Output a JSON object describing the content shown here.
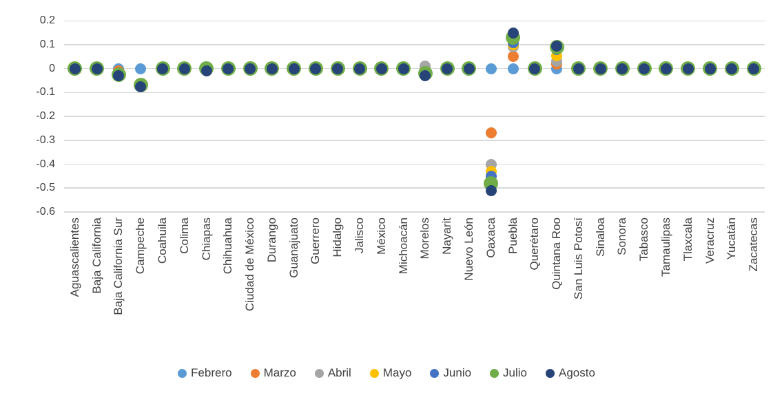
{
  "chart_data": {
    "type": "scatter",
    "title": "",
    "xlabel": "",
    "ylabel": "",
    "ylim": [
      -0.6,
      0.2
    ],
    "y_tick_labels": [
      "0.2",
      "0.1",
      "0",
      "-0.1",
      "-0.2",
      "-0.3",
      "-0.4",
      "-0.5",
      "-0.6"
    ],
    "grid": true,
    "legend_position": "bottom",
    "gridline_color": "#D9D9D9",
    "text_color": "#404040",
    "categories": [
      "Aguascalientes",
      "Baja California",
      "Baja California Sur",
      "Campeche",
      "Coahuila",
      "Colima",
      "Chiapas",
      "Chihuahua",
      "Ciudad de México",
      "Durango",
      "Guanajuato",
      "Guerrero",
      "Hidalgo",
      "Jalisco",
      "México",
      "Michoacán",
      "Morelos",
      "Nayarit",
      "Nuevo León",
      "Oaxaca",
      "Puebla",
      "Querétaro",
      "Quintana Roo",
      "San Luis Potosí",
      "Sinaloa",
      "Sonora",
      "Tabasco",
      "Tamaulipas",
      "Tlaxcala",
      "Veracruz",
      "Yucatán",
      "Zacatecas"
    ],
    "series": [
      {
        "name": "Febrero",
        "color": "#5B9BD5",
        "marker_size": 16,
        "values": [
          0,
          0,
          0,
          0,
          0,
          0,
          0,
          0,
          0,
          0,
          0,
          0,
          0,
          0,
          0,
          0,
          0,
          0,
          0,
          0,
          0,
          0,
          0,
          0,
          0,
          0,
          0,
          0,
          0,
          0,
          0,
          0
        ]
      },
      {
        "name": "Marzo",
        "color": "#ED7D31",
        "marker_size": 16,
        "values": [
          0,
          0,
          -0.01,
          -0.07,
          0,
          0,
          0,
          0,
          0,
          0,
          0,
          0,
          0,
          0,
          0,
          0,
          0,
          0,
          0,
          -0.27,
          0.05,
          0,
          0.02,
          0,
          0,
          0,
          0,
          0,
          0,
          0,
          0,
          0
        ]
      },
      {
        "name": "Abril",
        "color": "#A5A5A5",
        "marker_size": 16,
        "values": [
          0,
          0,
          -0.025,
          -0.07,
          0,
          0,
          0,
          0,
          0,
          0,
          0,
          0,
          0,
          0,
          0,
          0,
          0.01,
          0,
          0,
          -0.4,
          0.09,
          0,
          0.03,
          0,
          0,
          0,
          0,
          0,
          0,
          0,
          0,
          0
        ]
      },
      {
        "name": "Mayo",
        "color": "#FFC000",
        "marker_size": 16,
        "values": [
          0,
          0,
          -0.025,
          -0.07,
          0,
          0,
          0,
          0,
          0,
          0,
          0,
          0,
          0,
          0,
          0,
          0,
          -0.02,
          0,
          0,
          -0.43,
          0.1,
          0,
          0.055,
          0,
          0,
          0,
          0,
          0,
          0,
          0,
          0,
          0
        ]
      },
      {
        "name": "Junio",
        "color": "#4472C4",
        "marker_size": 16,
        "values": [
          0,
          0,
          -0.025,
          -0.07,
          0,
          0,
          0,
          0,
          0,
          0,
          0,
          0,
          0,
          0,
          0,
          0,
          -0.02,
          0,
          0,
          -0.45,
          0.11,
          0,
          0.08,
          0,
          0,
          0,
          0,
          0,
          0,
          0,
          0,
          0
        ]
      },
      {
        "name": "Julio",
        "color": "#70AD47",
        "marker_size": 21,
        "values": [
          0,
          0,
          -0.025,
          -0.07,
          0,
          0,
          0,
          0,
          0,
          0,
          0,
          0,
          0,
          0,
          0,
          0,
          -0.02,
          0,
          0,
          -0.48,
          0.13,
          0,
          0.09,
          0,
          0,
          0,
          0,
          0,
          0,
          0,
          0,
          0
        ]
      },
      {
        "name": "Agosto",
        "color": "#264478",
        "marker_size": 16,
        "values": [
          0,
          0,
          -0.03,
          -0.075,
          0,
          0,
          -0.01,
          0,
          0,
          0,
          0,
          0,
          0,
          0,
          0,
          0,
          -0.03,
          0,
          0,
          -0.51,
          0.15,
          0,
          0.095,
          0,
          0,
          0,
          0,
          0,
          0,
          0,
          0,
          0
        ]
      }
    ]
  }
}
